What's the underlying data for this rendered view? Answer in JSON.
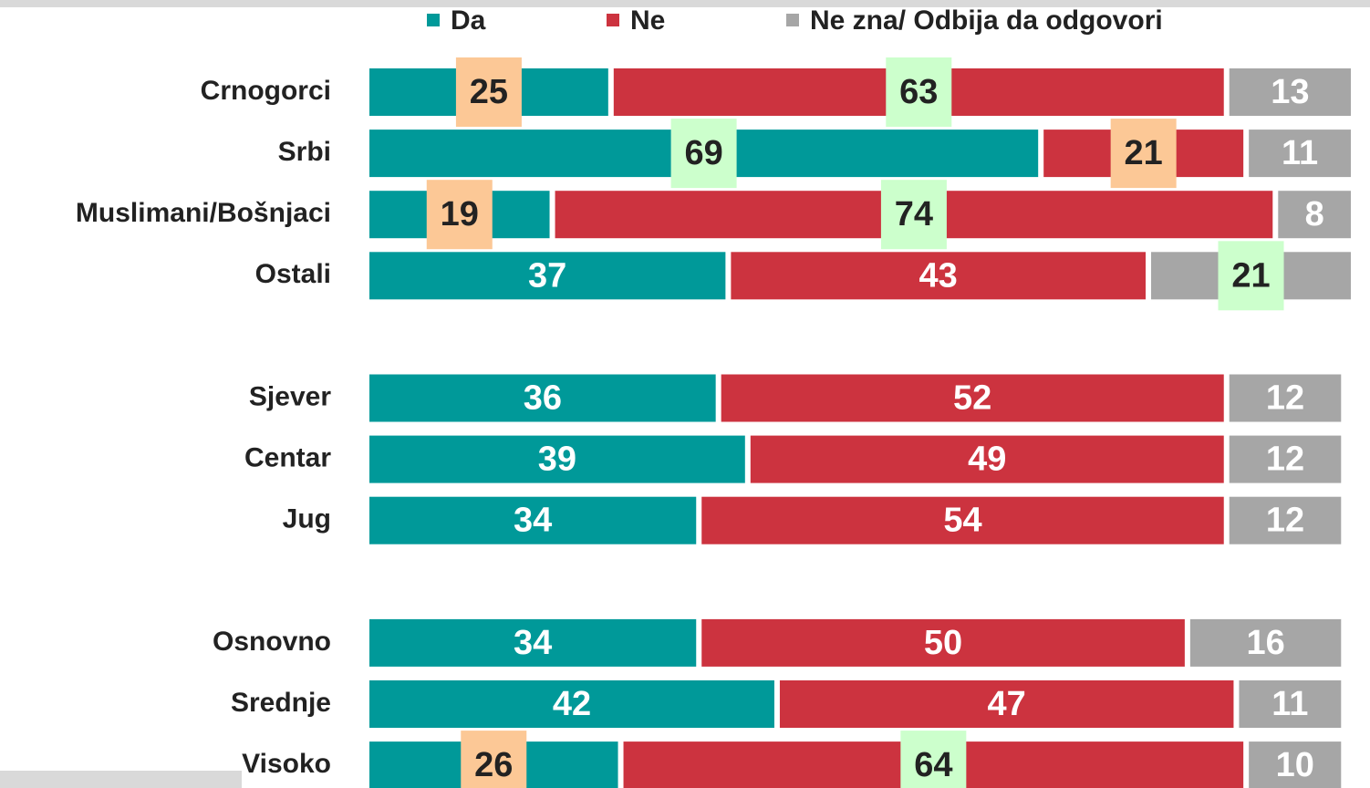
{
  "chart_data": {
    "type": "stacked-bar-horizontal",
    "categories": [
      "Crnogorci",
      "Srbi",
      "Muslimani/Bošnjaci",
      "Ostali",
      null,
      "Sjever",
      "Centar",
      "Jug",
      null,
      "Osnovno",
      "Srednje",
      "Visoko"
    ],
    "series": [
      {
        "name": "Da",
        "color": "#009999",
        "values": [
          25,
          69,
          19,
          37,
          null,
          36,
          39,
          34,
          null,
          34,
          42,
          26
        ],
        "highlights": [
          "#fcc896",
          "#ccffcc",
          "#fcc896",
          null,
          null,
          null,
          null,
          null,
          null,
          null,
          null,
          "#fcc896"
        ]
      },
      {
        "name": "Ne",
        "color": "#cc333f",
        "values": [
          63,
          21,
          74,
          43,
          null,
          52,
          49,
          54,
          null,
          50,
          47,
          64
        ],
        "highlights": [
          "#ccffcc",
          "#fcc896",
          "#ccffcc",
          null,
          null,
          null,
          null,
          null,
          null,
          null,
          null,
          "#ccffcc"
        ]
      },
      {
        "name": "Ne zna/ Odbija da odgovori",
        "color": "#a6a6a6",
        "values": [
          13,
          11,
          8,
          21,
          null,
          12,
          12,
          12,
          null,
          16,
          11,
          10
        ],
        "highlights": [
          null,
          null,
          null,
          "#ccffcc",
          null,
          null,
          null,
          null,
          null,
          null,
          null,
          null
        ]
      }
    ],
    "xlim": [
      0,
      101
    ]
  }
}
